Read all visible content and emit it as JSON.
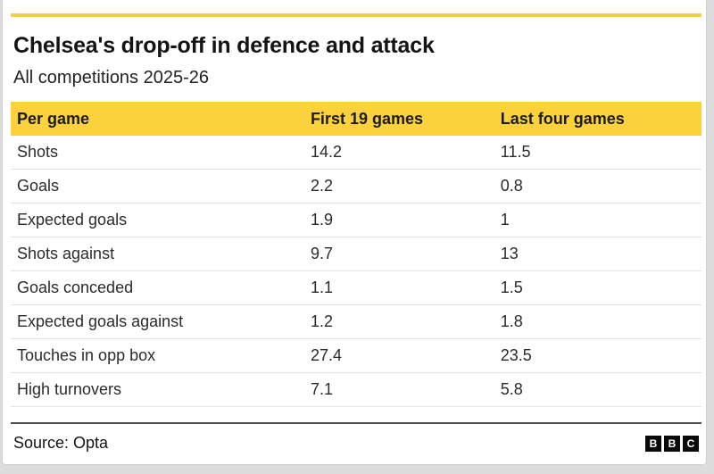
{
  "chart_data": {
    "type": "table",
    "title": "Chelsea's drop-off in defence and attack",
    "subtitle": "All competitions 2025-26",
    "columns": [
      "Per game",
      "First 19 games",
      "Last four games"
    ],
    "rows": [
      {
        "label": "Shots",
        "values": [
          14.2,
          11.5
        ]
      },
      {
        "label": "Goals",
        "values": [
          2.2,
          0.8
        ]
      },
      {
        "label": "Expected goals",
        "values": [
          1.9,
          1
        ]
      },
      {
        "label": "Shots against",
        "values": [
          9.7,
          13
        ]
      },
      {
        "label": "Goals conceded",
        "values": [
          1.1,
          1.5
        ]
      },
      {
        "label": "Expected goals against",
        "values": [
          1.2,
          1.8
        ]
      },
      {
        "label": "Touches in opp box",
        "values": [
          27.4,
          23.5
        ]
      },
      {
        "label": "High turnovers",
        "values": [
          7.1,
          5.8
        ]
      }
    ],
    "source": "Opta"
  },
  "footer": {
    "source": "Source: Opta",
    "logo_letters": [
      "B",
      "B",
      "C"
    ]
  },
  "colors": {
    "header_yellow": "#fbd23c",
    "top_rule_yellow": "#f0ce54",
    "row_divider": "#e2e2e2",
    "footer_rule": "#4d4d4d",
    "text": "#141414",
    "logo_black": "#0a0a0a"
  }
}
